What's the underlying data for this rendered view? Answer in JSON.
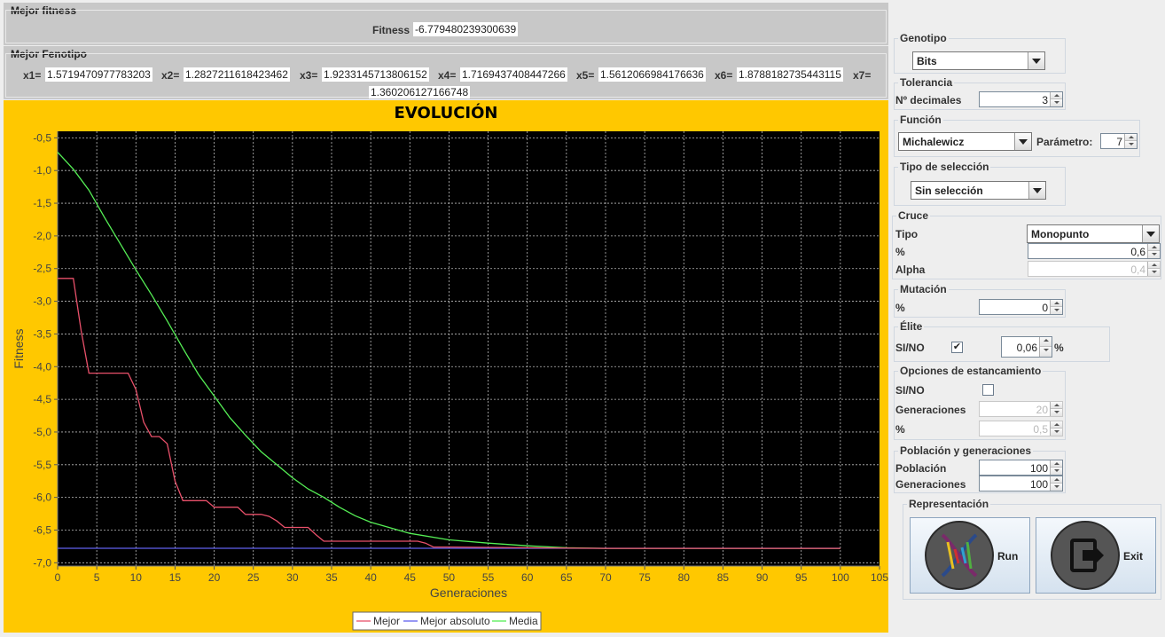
{
  "best_fitness": {
    "title": "Mejor fitness",
    "label": "Fitness",
    "value": "-6.779480239300639"
  },
  "best_phenotype": {
    "title": "Mejor Fenotipo",
    "vars": [
      {
        "label": "x1=",
        "value": "1.5719470977783203"
      },
      {
        "label": "x2=",
        "value": "1.2827211618423462"
      },
      {
        "label": "x3=",
        "value": "1.9233145713806152"
      },
      {
        "label": "x4=",
        "value": "1.7169437408447266"
      },
      {
        "label": "x5=",
        "value": "1.5612066984176636"
      },
      {
        "label": "x6=",
        "value": "1.8788182735443115"
      },
      {
        "label": "x7=",
        "value": "1.360206127166748"
      }
    ]
  },
  "chart_data": {
    "type": "line",
    "title": "EVOLUCIÓN",
    "xlabel": "Generaciones",
    "ylabel": "Fitness",
    "xlim": [
      0,
      105
    ],
    "ylim": [
      -7.05,
      -0.4
    ],
    "xticks": [
      "0",
      "5",
      "10",
      "15",
      "20",
      "25",
      "30",
      "35",
      "40",
      "45",
      "50",
      "55",
      "60",
      "65",
      "70",
      "75",
      "80",
      "85",
      "90",
      "95",
      "100",
      "105"
    ],
    "yticks": [
      "-0,5",
      "-1,0",
      "-1,5",
      "-2,0",
      "-2,5",
      "-3,0",
      "-3,5",
      "-4,0",
      "-4,5",
      "-5,0",
      "-5,5",
      "-6,0",
      "-6,5",
      "-7,0"
    ],
    "grid": true,
    "legend_position": "bottom",
    "series": [
      {
        "name": "Mejor",
        "color": "#e8506a",
        "x": [
          0,
          1,
          2,
          3,
          4,
          5,
          6,
          7,
          8,
          9,
          10,
          11,
          12,
          13,
          14,
          15,
          16,
          17,
          18,
          19,
          20,
          21,
          22,
          23,
          24,
          25,
          26,
          27,
          28,
          29,
          30,
          31,
          32,
          33,
          34,
          35,
          40,
          45,
          46,
          47,
          48,
          50,
          60,
          70,
          80,
          90,
          100
        ],
        "y": [
          -2.65,
          -2.65,
          -2.65,
          -3.45,
          -4.1,
          -4.1,
          -4.1,
          -4.1,
          -4.1,
          -4.1,
          -4.35,
          -4.85,
          -5.07,
          -5.07,
          -5.18,
          -5.75,
          -6.05,
          -6.05,
          -6.05,
          -6.05,
          -6.15,
          -6.15,
          -6.15,
          -6.15,
          -6.26,
          -6.26,
          -6.26,
          -6.29,
          -6.36,
          -6.46,
          -6.46,
          -6.46,
          -6.46,
          -6.57,
          -6.67,
          -6.67,
          -6.67,
          -6.67,
          -6.67,
          -6.7,
          -6.76,
          -6.76,
          -6.77,
          -6.78,
          -6.78,
          -6.78,
          -6.78
        ]
      },
      {
        "name": "Mejor absoluto",
        "color": "#6060ee",
        "x": [
          0,
          100
        ],
        "y": [
          -6.779,
          -6.779
        ]
      },
      {
        "name": "Media",
        "color": "#55ee55",
        "x": [
          0,
          2,
          4,
          6,
          8,
          10,
          12,
          14,
          16,
          18,
          20,
          22,
          24,
          26,
          28,
          30,
          32,
          34,
          36,
          38,
          40,
          45,
          50,
          55,
          60,
          65,
          70,
          80,
          90,
          100
        ],
        "y": [
          -0.72,
          -0.98,
          -1.3,
          -1.72,
          -2.12,
          -2.52,
          -2.9,
          -3.3,
          -3.72,
          -4.12,
          -4.45,
          -4.78,
          -5.05,
          -5.3,
          -5.5,
          -5.7,
          -5.87,
          -6.0,
          -6.15,
          -6.28,
          -6.38,
          -6.55,
          -6.65,
          -6.7,
          -6.74,
          -6.77,
          -6.78,
          -6.78,
          -6.78,
          -6.78
        ]
      }
    ]
  },
  "settings": {
    "genotipo": {
      "title": "Genotipo",
      "selected": "Bits"
    },
    "tolerancia": {
      "title": "Tolerancia",
      "label": "Nº decimales",
      "value": "3"
    },
    "funcion": {
      "title": "Función",
      "selected": "Michalewicz",
      "param_label": "Parámetro:",
      "param_value": "7"
    },
    "seleccion": {
      "title": "Tipo de selección",
      "selected": "Sin selección"
    },
    "cruce": {
      "title": "Cruce",
      "tipo_label": "Tipo",
      "tipo_value": "Monopunto",
      "pct_label": "%",
      "pct_value": "0,6",
      "alpha_label": "Alpha",
      "alpha_value": "0,4"
    },
    "mutacion": {
      "title": "Mutación",
      "pct_label": "%",
      "pct_value": "0"
    },
    "elite": {
      "title": "Élite",
      "label": "SI/NO",
      "checked_mark": "✔",
      "value": "0,06",
      "unit": "%"
    },
    "estancamiento": {
      "title": "Opciones de estancamiento",
      "label": "SI/NO",
      "gen_label": "Generaciones",
      "gen_value": "20",
      "pct_label": "%",
      "pct_value": "0,5"
    },
    "poblacion": {
      "title": "Población y generaciones",
      "pob_label": "Población",
      "pob_value": "100",
      "gen_label": "Generaciones",
      "gen_value": "100"
    },
    "representacion": {
      "title": "Representación",
      "run_label": "Run",
      "exit_label": "Exit",
      "run_icon": "dna-icon",
      "exit_icon": "exit-icon"
    }
  }
}
